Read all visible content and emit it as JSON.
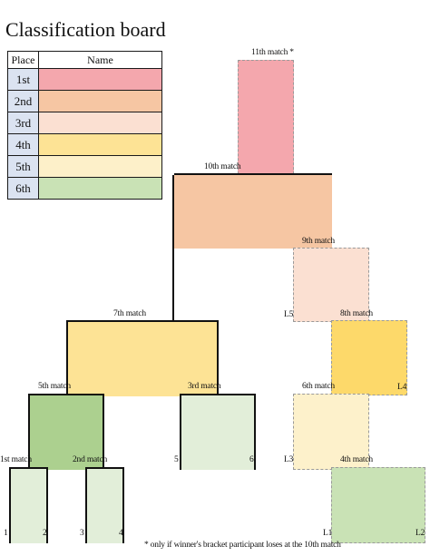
{
  "title": "Classification board",
  "table": {
    "headers": {
      "place": "Place",
      "name": "Name"
    },
    "rows": [
      {
        "place": "1st",
        "color": "#f4a7ad"
      },
      {
        "place": "2nd",
        "color": "#f6c6a3"
      },
      {
        "place": "3rd",
        "color": "#fbe0d2"
      },
      {
        "place": "4th",
        "color": "#fde395"
      },
      {
        "place": "5th",
        "color": "#fdf0c9"
      },
      {
        "place": "6th",
        "color": "#c9e2b5"
      }
    ]
  },
  "matches": {
    "m1": "1st match",
    "m2": "2nd match",
    "m3": "3rd match",
    "m4": "4th match",
    "m5": "5th match",
    "m6": "6th match",
    "m7": "7th match",
    "m8": "8th match",
    "m9": "9th match",
    "m10": "10th match",
    "m11": "11th match *"
  },
  "slots": {
    "s1": "1",
    "s2": "2",
    "s3": "3",
    "s4": "4",
    "s5": "5",
    "s6": "6",
    "l1": "L1",
    "l2": "L2",
    "l3": "L3",
    "l4": "L4",
    "l5": "L5"
  },
  "footnote": "* only if winner's bracket participant loses at the 10th match",
  "colors": {
    "first": "#f4a7ad",
    "second": "#f6c6a3",
    "third": "#fbe0d2",
    "fourth": "#fde08a",
    "fifth": "#fdf1cb",
    "sixth": "#c9e2b5",
    "green_dark": "#acd08f",
    "green_light": "#e2eed9"
  }
}
